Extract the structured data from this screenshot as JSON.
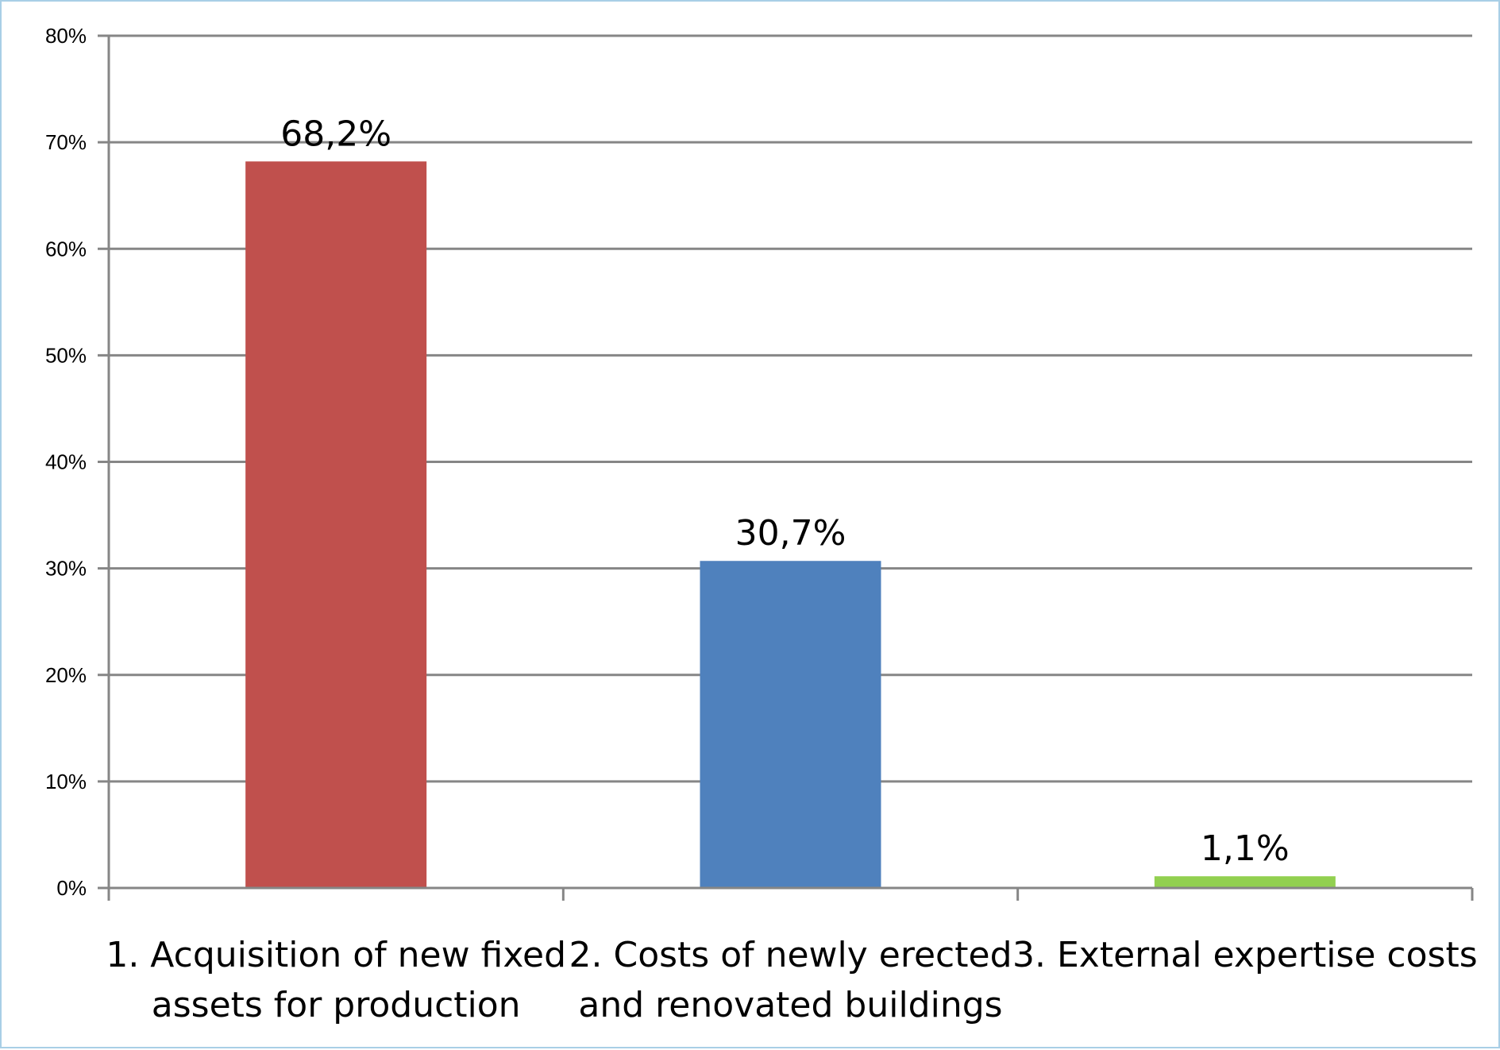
{
  "chart_data": {
    "type": "bar",
    "categories": [
      [
        "1. Acquisition of new fixed",
        "assets for production"
      ],
      [
        "2. Costs of newly erected",
        "and renovated buildings"
      ],
      [
        "3. External expertise costs"
      ]
    ],
    "values": [
      68.2,
      30.7,
      1.1
    ],
    "data_labels": [
      "68,2%",
      "30,7%",
      "1,1%"
    ],
    "bar_colors": [
      "#c0504d",
      "#4f81bd",
      "#92d050"
    ],
    "ylim": [
      0,
      80
    ],
    "yticks": [
      0,
      10,
      20,
      30,
      40,
      50,
      60,
      70,
      80
    ],
    "ytick_labels": [
      "0%",
      "10%",
      "20%",
      "30%",
      "40%",
      "50%",
      "60%",
      "70%",
      "80%"
    ],
    "grid": true,
    "legend": "none",
    "title": "",
    "xlabel": "",
    "ylabel": ""
  }
}
